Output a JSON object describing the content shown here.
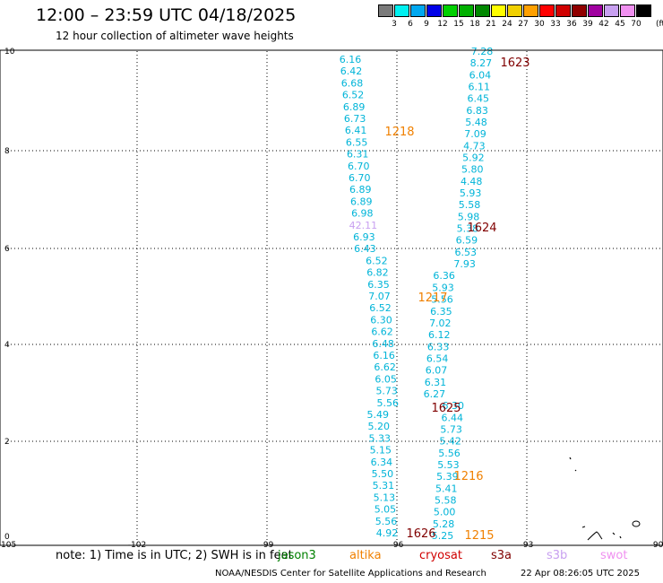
{
  "header": {
    "title": "12:00 – 23:59 UTC 04/18/2025",
    "subtitle": "12 hour collection of altimeter wave heights"
  },
  "colorbar": {
    "unit": "(ft)",
    "swatches": [
      {
        "color": "#7a7a7a",
        "label": "3"
      },
      {
        "color": "#00f0f0",
        "label": "6"
      },
      {
        "color": "#00a8f0",
        "label": "9"
      },
      {
        "color": "#0000e8",
        "label": "12"
      },
      {
        "color": "#00d000",
        "label": "15"
      },
      {
        "color": "#00b000",
        "label": "18"
      },
      {
        "color": "#008800",
        "label": "21"
      },
      {
        "color": "#ffff00",
        "label": "24"
      },
      {
        "color": "#f0d000",
        "label": "27"
      },
      {
        "color": "#ffa000",
        "label": "30"
      },
      {
        "color": "#ff0000",
        "label": "33"
      },
      {
        "color": "#d00000",
        "label": "36"
      },
      {
        "color": "#900000",
        "label": "39"
      },
      {
        "color": "#a000a0",
        "label": "42"
      },
      {
        "color": "#c8a0f0",
        "label": "45"
      },
      {
        "color": "#f090f0",
        "label": "70"
      },
      {
        "color": "#000000",
        "label": ""
      }
    ]
  },
  "axes": {
    "x_ticks": [
      "-105",
      "-102",
      "-99",
      "-96",
      "-93",
      "-90"
    ],
    "y_ticks": [
      "0",
      "2",
      "4",
      "6",
      "8",
      "10"
    ]
  },
  "track_labels": [
    {
      "text": "1623",
      "color": "#800000"
    },
    {
      "text": "1218",
      "color": "#f08000"
    },
    {
      "text": "1624",
      "color": "#800000"
    },
    {
      "text": "1217",
      "color": "#f08000"
    },
    {
      "text": "1625",
      "color": "#800000"
    },
    {
      "text": "1216",
      "color": "#f08000"
    },
    {
      "text": "1626",
      "color": "#800000"
    },
    {
      "text": "1215",
      "color": "#f08000"
    }
  ],
  "track_a": [
    "6.16",
    "6.42",
    "6.68",
    "6.52",
    "6.89",
    "6.73",
    "6.41",
    "6.55",
    "6.31",
    "6.70",
    "6.70",
    "6.89",
    "6.89",
    "6.98",
    "42.11",
    "6.93",
    "6.43",
    "6.52",
    "6.82",
    "6.35",
    "7.07",
    "6.52",
    "6.30",
    "6.62",
    "6.48",
    "6.16",
    "6.62",
    "6.05",
    "5.73",
    "5.56",
    "5.49",
    "5.20",
    "5.33",
    "5.15",
    "6.34",
    "5.50",
    "5.31",
    "5.13",
    "5.05",
    "5.56",
    "4.92"
  ],
  "track_b": [
    "7.28",
    "8.27",
    "6.04",
    "6.11",
    "6.45",
    "6.83",
    "5.48",
    "7.09",
    "4.73",
    "5.92",
    "5.80",
    "4.48",
    "5.93",
    "5.58",
    "5.98",
    "5.38",
    "6.59",
    "6.53",
    "7.93",
    "6.36",
    "5.93",
    "5.56",
    "6.35",
    "7.02",
    "6.12",
    "6.33",
    "6.54",
    "6.07",
    "6.31",
    "6.27",
    "6.30",
    "6.44",
    "5.73",
    "5.42",
    "5.56",
    "5.53",
    "5.39",
    "5.41",
    "5.58",
    "5.00",
    "5.28",
    "5.25"
  ],
  "footnote": {
    "text": "note:  1) Time is in UTC;  2) SWH is in feet",
    "satellites": [
      {
        "name": "jason3",
        "color": "#008000"
      },
      {
        "name": "altika",
        "color": "#f08000"
      },
      {
        "name": "cryosat",
        "color": "#d00000"
      },
      {
        "name": "s3a",
        "color": "#800000"
      },
      {
        "name": "s3b",
        "color": "#c8a0f0"
      },
      {
        "name": "swot",
        "color": "#f090f0"
      }
    ]
  },
  "credit": "NOAA/NESDIS Center for Satellite Applications and Research",
  "timestamp": "22 Apr 08:26:05 UTC 2025"
}
